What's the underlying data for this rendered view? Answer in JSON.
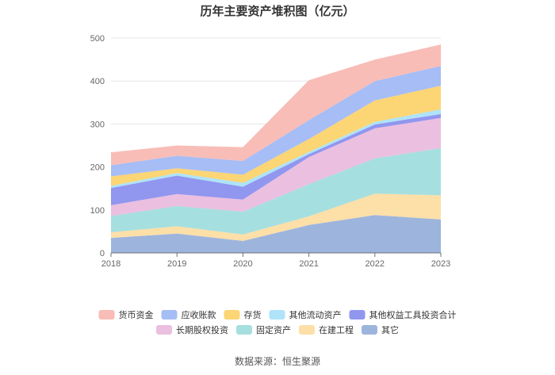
{
  "chart_data": {
    "type": "area",
    "stacked": true,
    "title": "历年主要资产堆积图（亿元）",
    "xlabel": "",
    "ylabel": "",
    "x": [
      "2018",
      "2019",
      "2020",
      "2021",
      "2022",
      "2023"
    ],
    "ylim": [
      0,
      500
    ],
    "yticks": [
      0,
      100,
      200,
      300,
      400,
      500
    ],
    "grid": true,
    "legend_position": "bottom",
    "series": [
      {
        "name": "其它",
        "color": "#9db5dd",
        "values": [
          35,
          45,
          28,
          65,
          88,
          78
        ]
      },
      {
        "name": "在建工程",
        "color": "#fddfa8",
        "values": [
          13,
          17,
          15,
          20,
          50,
          56
        ]
      },
      {
        "name": "固定资产",
        "color": "#a6dfdf",
        "values": [
          38,
          47,
          53,
          75,
          82,
          110
        ]
      },
      {
        "name": "长期股权投资",
        "color": "#ebbfdf",
        "values": [
          25,
          28,
          28,
          63,
          70,
          70
        ]
      },
      {
        "name": "其他权益工具投资合计",
        "color": "#9196ef",
        "values": [
          40,
          43,
          30,
          7,
          9,
          9
        ]
      },
      {
        "name": "其他流动资产",
        "color": "#aee3f8",
        "values": [
          5,
          6,
          9,
          5,
          6,
          11
        ]
      },
      {
        "name": "存货",
        "color": "#fcd574",
        "values": [
          22,
          11,
          19,
          30,
          50,
          55
        ]
      },
      {
        "name": "应收账款",
        "color": "#a6bdf6",
        "values": [
          26,
          29,
          32,
          44,
          45,
          46
        ]
      },
      {
        "name": "货币资金",
        "color": "#f8bdb7",
        "values": [
          30,
          24,
          32,
          93,
          50,
          50
        ]
      }
    ],
    "legend_order": [
      "货币资金",
      "应收账款",
      "存货",
      "其他流动资产",
      "其他权益工具投资合计",
      "长期股权投资",
      "固定资产",
      "在建工程",
      "其它"
    ]
  },
  "source_text": "数据来源：恒生聚源"
}
